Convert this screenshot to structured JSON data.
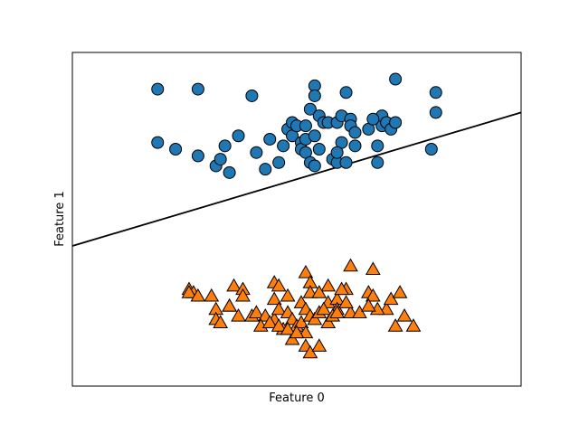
{
  "chart_data": {
    "type": "scatter",
    "title": "",
    "xlabel": "Feature 0",
    "ylabel": "Feature 1",
    "xlim": [
      0,
      100
    ],
    "ylim": [
      0,
      100
    ],
    "grid": false,
    "ticks_visible": false,
    "series": [
      {
        "marker": "circle",
        "color": "#1f77b4",
        "points": [
          [
            19,
            89
          ],
          [
            28,
            89
          ],
          [
            40,
            87
          ],
          [
            54,
            90
          ],
          [
            54,
            87
          ],
          [
            53,
            83
          ],
          [
            61,
            88
          ],
          [
            72,
            92
          ],
          [
            81,
            82
          ],
          [
            81,
            88
          ],
          [
            19,
            73
          ],
          [
            23,
            71
          ],
          [
            28,
            69
          ],
          [
            34,
            72
          ],
          [
            37,
            75
          ],
          [
            41,
            70
          ],
          [
            43,
            65
          ],
          [
            44,
            74
          ],
          [
            46,
            67
          ],
          [
            47,
            72
          ],
          [
            48,
            77
          ],
          [
            49,
            79
          ],
          [
            49,
            75
          ],
          [
            50,
            78
          ],
          [
            51,
            73
          ],
          [
            51,
            71
          ],
          [
            52,
            78
          ],
          [
            52,
            74
          ],
          [
            52,
            70
          ],
          [
            53,
            67
          ],
          [
            54,
            75
          ],
          [
            54,
            66
          ],
          [
            55,
            71
          ],
          [
            55,
            81
          ],
          [
            56,
            79
          ],
          [
            57,
            79
          ],
          [
            58,
            68
          ],
          [
            59,
            67
          ],
          [
            59,
            79
          ],
          [
            60,
            81
          ],
          [
            60,
            73
          ],
          [
            61,
            67
          ],
          [
            62,
            80
          ],
          [
            62,
            78
          ],
          [
            63,
            76
          ],
          [
            63,
            72
          ],
          [
            68,
            72
          ],
          [
            68,
            67
          ],
          [
            69,
            78
          ],
          [
            69,
            81
          ],
          [
            70,
            79
          ],
          [
            71,
            77
          ],
          [
            72,
            79
          ],
          [
            80,
            71
          ],
          [
            59,
            70
          ],
          [
            66,
            77
          ],
          [
            67,
            80
          ],
          [
            35,
            64
          ],
          [
            32,
            66
          ],
          [
            33,
            68
          ]
        ]
      },
      {
        "marker": "triangle",
        "color": "#ff7f0e",
        "points": [
          [
            62,
            36
          ],
          [
            67,
            35
          ],
          [
            52,
            34
          ],
          [
            53,
            31
          ],
          [
            45,
            31
          ],
          [
            46,
            30
          ],
          [
            26,
            29
          ],
          [
            27,
            28
          ],
          [
            36,
            30
          ],
          [
            38,
            29
          ],
          [
            57,
            30
          ],
          [
            61,
            29
          ],
          [
            26,
            28
          ],
          [
            28,
            27
          ],
          [
            31,
            27
          ],
          [
            35,
            24
          ],
          [
            38,
            27
          ],
          [
            45,
            26
          ],
          [
            48,
            27
          ],
          [
            51,
            25
          ],
          [
            53,
            28
          ],
          [
            55,
            28
          ],
          [
            57,
            25
          ],
          [
            59,
            26
          ],
          [
            60,
            29
          ],
          [
            66,
            28
          ],
          [
            67,
            27
          ],
          [
            70,
            23
          ],
          [
            71,
            26
          ],
          [
            73,
            28
          ],
          [
            68,
            23
          ],
          [
            62,
            22
          ],
          [
            59,
            23
          ],
          [
            32,
            23
          ],
          [
            35,
            24
          ],
          [
            37,
            21
          ],
          [
            40,
            21
          ],
          [
            41,
            22
          ],
          [
            43,
            21
          ],
          [
            45,
            20
          ],
          [
            46,
            23
          ],
          [
            48,
            22
          ],
          [
            49,
            20
          ],
          [
            50,
            18
          ],
          [
            51,
            19
          ],
          [
            52,
            23
          ],
          [
            53,
            21
          ],
          [
            54,
            20
          ],
          [
            55,
            22
          ],
          [
            56,
            23
          ],
          [
            57,
            19
          ],
          [
            58,
            21
          ],
          [
            59,
            22
          ],
          [
            61,
            25
          ],
          [
            64,
            22
          ],
          [
            66,
            24
          ],
          [
            72,
            18
          ],
          [
            74,
            21
          ],
          [
            76,
            18
          ],
          [
            47,
            17
          ],
          [
            49,
            14
          ],
          [
            52,
            12
          ],
          [
            53,
            10
          ],
          [
            55,
            12
          ],
          [
            52,
            16
          ],
          [
            32,
            20
          ],
          [
            33,
            19
          ],
          [
            42,
            18
          ],
          [
            44,
            19
          ],
          [
            46,
            18
          ],
          [
            48,
            17
          ],
          [
            50,
            16
          ]
        ]
      }
    ],
    "decision_boundary": {
      "color": "#000000",
      "x": [
        0,
        100
      ],
      "y": [
        42,
        82
      ]
    }
  }
}
